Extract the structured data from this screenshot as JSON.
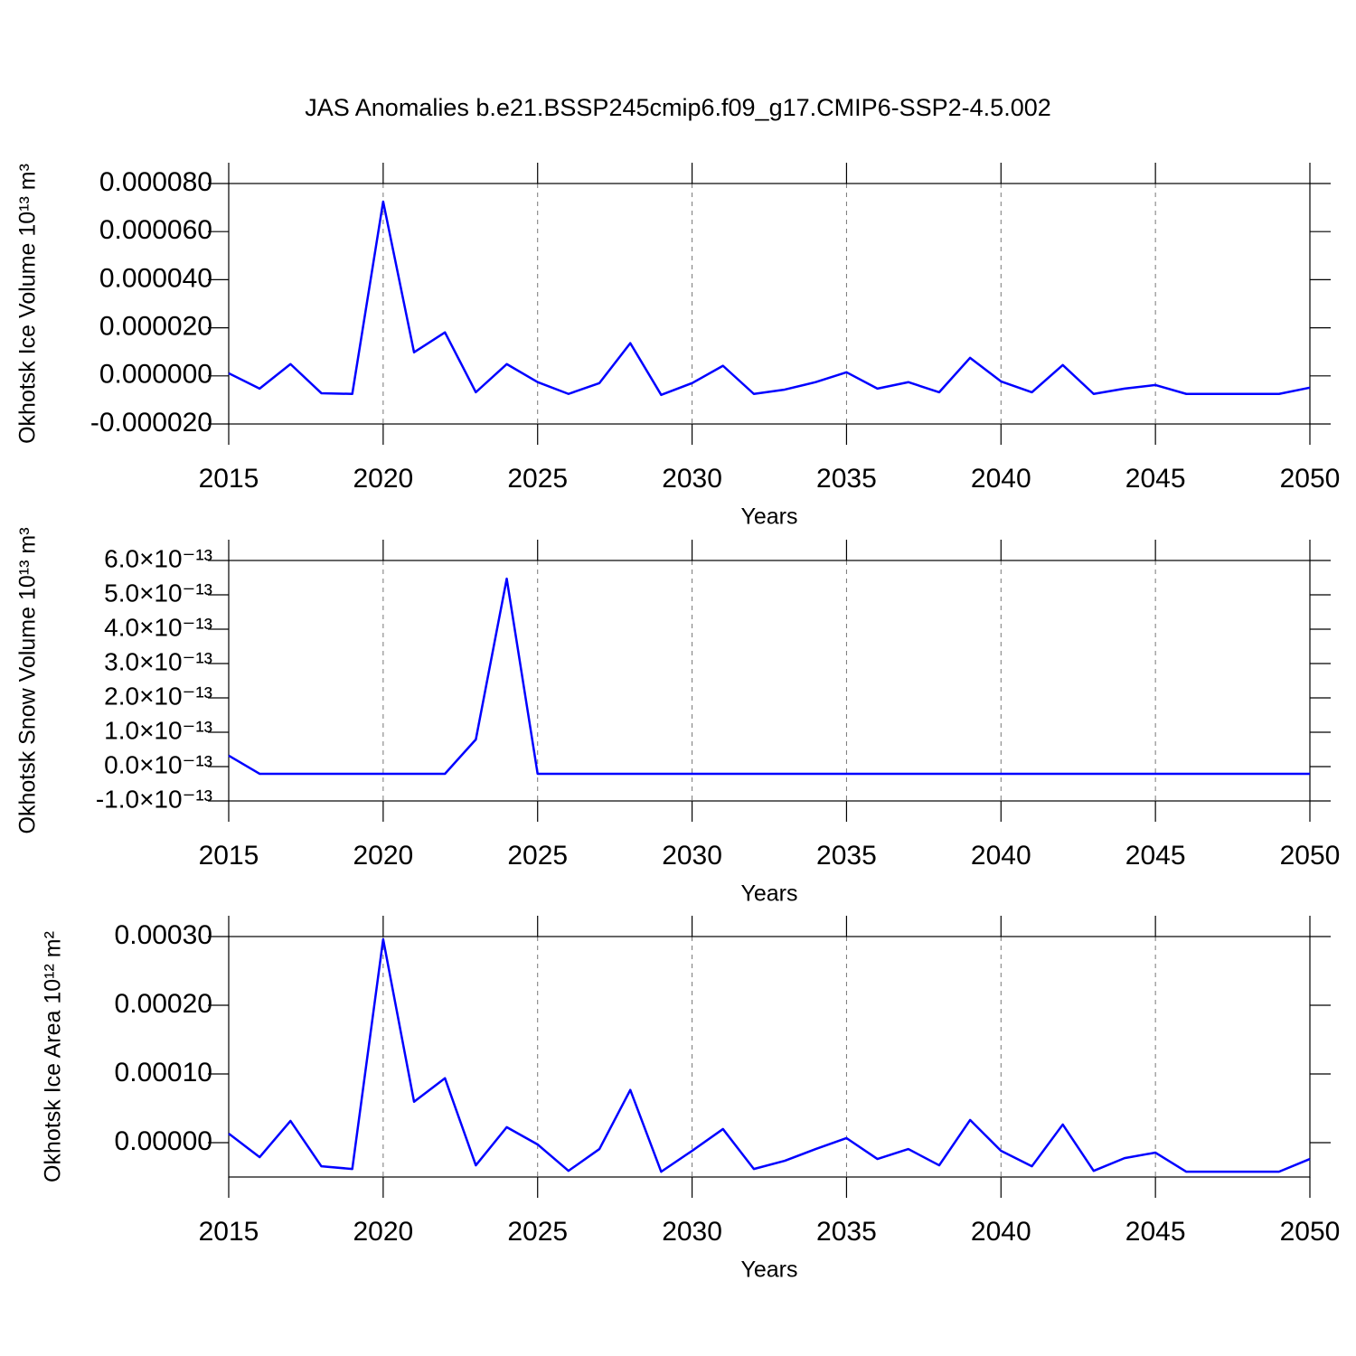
{
  "title": "JAS Anomalies b.e21.BSSP245cmip6.f09_g17.CMIP6-SSP2-4.5.002",
  "chart_data": [
    {
      "type": "line",
      "y_label": "Okhotsk Ice Volume 10¹³ m³",
      "x_label": "Years",
      "x": [
        2015,
        2016,
        2017,
        2018,
        2019,
        2020,
        2021,
        2022,
        2023,
        2024,
        2025,
        2026,
        2027,
        2028,
        2029,
        2030,
        2031,
        2032,
        2033,
        2034,
        2035,
        2036,
        2037,
        2038,
        2039,
        2040,
        2041,
        2042,
        2043,
        2044,
        2045,
        2046,
        2047,
        2048,
        2049,
        2050
      ],
      "series": [
        {
          "color": "#0000ff",
          "values": [
            1.1e-06,
            -5.3e-06,
            4.9e-06,
            -7.2e-06,
            -7.5e-06,
            7.25e-05,
            9.8e-06,
            1.81e-05,
            -6.8e-06,
            4.9e-06,
            -2.6e-06,
            -7.5e-06,
            -3e-06,
            1.36e-05,
            -7.9e-06,
            -3e-06,
            4.2e-06,
            -7.5e-06,
            -5.7e-06,
            -2.6e-06,
            1.5e-06,
            -5.3e-06,
            -2.6e-06,
            -6.8e-06,
            7.5e-06,
            -2.3e-06,
            -6.8e-06,
            4.5e-06,
            -7.5e-06,
            -5.3e-06,
            -3.8e-06,
            -7.5e-06,
            -7.5e-06,
            -7.5e-06,
            -7.5e-06,
            -4.9e-06
          ]
        }
      ],
      "xlim": [
        2015,
        2050
      ],
      "xticks": [
        2015,
        2020,
        2025,
        2030,
        2035,
        2040,
        2045,
        2050
      ],
      "ylim": [
        -2e-05,
        8e-05
      ],
      "yticks": [
        {
          "value": -2e-05,
          "label": "-0.000020"
        },
        {
          "value": 0,
          "label": "0.000000"
        },
        {
          "value": 2e-05,
          "label": "0.000020"
        },
        {
          "value": 4e-05,
          "label": "0.000040"
        },
        {
          "value": 6e-05,
          "label": "0.000060"
        },
        {
          "value": 8e-05,
          "label": "0.000080"
        }
      ],
      "grid": true
    },
    {
      "type": "line",
      "y_label": "Okhotsk Snow Volume 10¹³ m³",
      "x_label": "Years",
      "x": [
        2015,
        2016,
        2017,
        2018,
        2019,
        2020,
        2021,
        2022,
        2023,
        2024,
        2025,
        2026,
        2027,
        2028,
        2029,
        2030,
        2031,
        2032,
        2033,
        2034,
        2035,
        2036,
        2037,
        2038,
        2039,
        2040,
        2041,
        2042,
        2043,
        2044,
        2045,
        2046,
        2047,
        2048,
        2049,
        2050
      ],
      "series": [
        {
          "color": "#0000ff",
          "values": [
            3.2e-14,
            -2.1e-14,
            -2.1e-14,
            -2.1e-14,
            -2.1e-14,
            -2.1e-14,
            -2.1e-14,
            -2.1e-14,
            7.9e-14,
            5.47e-13,
            -2.1e-14,
            -2.1e-14,
            -2.1e-14,
            -2.1e-14,
            -2.1e-14,
            -2.1e-14,
            -2.1e-14,
            -2.1e-14,
            -2.1e-14,
            -2.1e-14,
            -2.1e-14,
            -2.1e-14,
            -2.1e-14,
            -2.1e-14,
            -2.1e-14,
            -2.1e-14,
            -2.1e-14,
            -2.1e-14,
            -2.1e-14,
            -2.1e-14,
            -2.1e-14,
            -2.1e-14,
            -2.1e-14,
            -2.1e-14,
            -2.1e-14,
            -2.1e-14
          ]
        }
      ],
      "xlim": [
        2015,
        2050
      ],
      "xticks": [
        2015,
        2020,
        2025,
        2030,
        2035,
        2040,
        2045,
        2050
      ],
      "ylim": [
        -1e-13,
        6e-13
      ],
      "yticks": [
        {
          "value": -1e-13,
          "label": "-1.0×10⁻¹³"
        },
        {
          "value": 0,
          "label": "0.0×10⁻¹³"
        },
        {
          "value": 1e-13,
          "label": "1.0×10⁻¹³"
        },
        {
          "value": 2e-13,
          "label": "2.0×10⁻¹³"
        },
        {
          "value": 3e-13,
          "label": "3.0×10⁻¹³"
        },
        {
          "value": 4e-13,
          "label": "4.0×10⁻¹³"
        },
        {
          "value": 5e-13,
          "label": "5.0×10⁻¹³"
        },
        {
          "value": 6e-13,
          "label": "6.0×10⁻¹³"
        }
      ],
      "grid": true
    },
    {
      "type": "line",
      "y_label": "Okhotsk Ice Area 10¹² m²",
      "x_label": "Years",
      "x": [
        2015,
        2016,
        2017,
        2018,
        2019,
        2020,
        2021,
        2022,
        2023,
        2024,
        2025,
        2026,
        2027,
        2028,
        2029,
        2030,
        2031,
        2032,
        2033,
        2034,
        2035,
        2036,
        2037,
        2038,
        2039,
        2040,
        2041,
        2042,
        2043,
        2044,
        2045,
        2046,
        2047,
        2048,
        2049,
        2050
      ],
      "series": [
        {
          "color": "#0000ff",
          "values": [
            1.32e-05,
            -2.11e-05,
            3.17e-05,
            -3.44e-05,
            -3.83e-05,
            0.000296,
            5.95e-05,
            9.38e-05,
            -3.3e-05,
            2.25e-05,
            -2.6e-06,
            -4.1e-05,
            -9.3e-06,
            7.67e-05,
            -4.23e-05,
            -1.19e-05,
            1.98e-05,
            -3.83e-05,
            -2.64e-05,
            -9.3e-06,
            6.6e-06,
            -2.38e-05,
            -9.3e-06,
            -3.3e-05,
            3.3e-05,
            -1.19e-05,
            -3.44e-05,
            2.64e-05,
            -4.1e-05,
            -2.25e-05,
            -1.45e-05,
            -4.23e-05,
            -4.23e-05,
            -4.23e-05,
            -4.23e-05,
            -2.38e-05
          ]
        }
      ],
      "xlim": [
        2015,
        2050
      ],
      "xticks": [
        2015,
        2020,
        2025,
        2030,
        2035,
        2040,
        2045,
        2050
      ],
      "ylim": [
        -5e-05,
        0.0003
      ],
      "yticks": [
        {
          "value": 0,
          "label": "0.00000"
        },
        {
          "value": 0.0001,
          "label": "0.00010"
        },
        {
          "value": 0.0002,
          "label": "0.00020"
        },
        {
          "value": 0.0003,
          "label": "0.00030"
        }
      ],
      "grid": true
    }
  ]
}
